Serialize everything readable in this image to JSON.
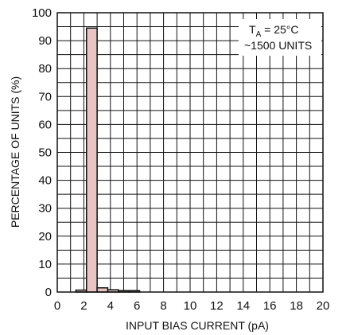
{
  "chart_data": {
    "type": "bar",
    "xlabel": "INPUT BIAS CURRENT (pA)",
    "ylabel": "PERCENTAGE OF UNITS (%)",
    "xlim": [
      0,
      20
    ],
    "ylim": [
      0,
      100
    ],
    "x_ticks": [
      0,
      2,
      4,
      6,
      8,
      10,
      12,
      14,
      16,
      18,
      20
    ],
    "y_ticks": [
      0,
      10,
      20,
      30,
      40,
      50,
      60,
      70,
      80,
      90,
      100
    ],
    "x_grid_step": 1,
    "y_grid_step": 5,
    "grid": true,
    "bin_width": 0.8,
    "bins": [
      {
        "x_start": 1.4,
        "x_end": 2.2,
        "value": 0.7
      },
      {
        "x_start": 2.2,
        "x_end": 3.0,
        "value": 94.5
      },
      {
        "x_start": 3.0,
        "x_end": 3.8,
        "value": 1.5
      },
      {
        "x_start": 3.8,
        "x_end": 4.6,
        "value": 0.8
      },
      {
        "x_start": 4.6,
        "x_end": 5.4,
        "value": 0.5
      },
      {
        "x_start": 5.4,
        "x_end": 6.2,
        "value": 0.5
      }
    ],
    "bar_color": "#e8c4c4",
    "bar_edge_color": "#111111",
    "annotation": {
      "t_main": "T",
      "t_sub": "A",
      "t_rest": " = 25°C",
      "line2": "~1500 UNITS",
      "placement": "top-right"
    }
  }
}
